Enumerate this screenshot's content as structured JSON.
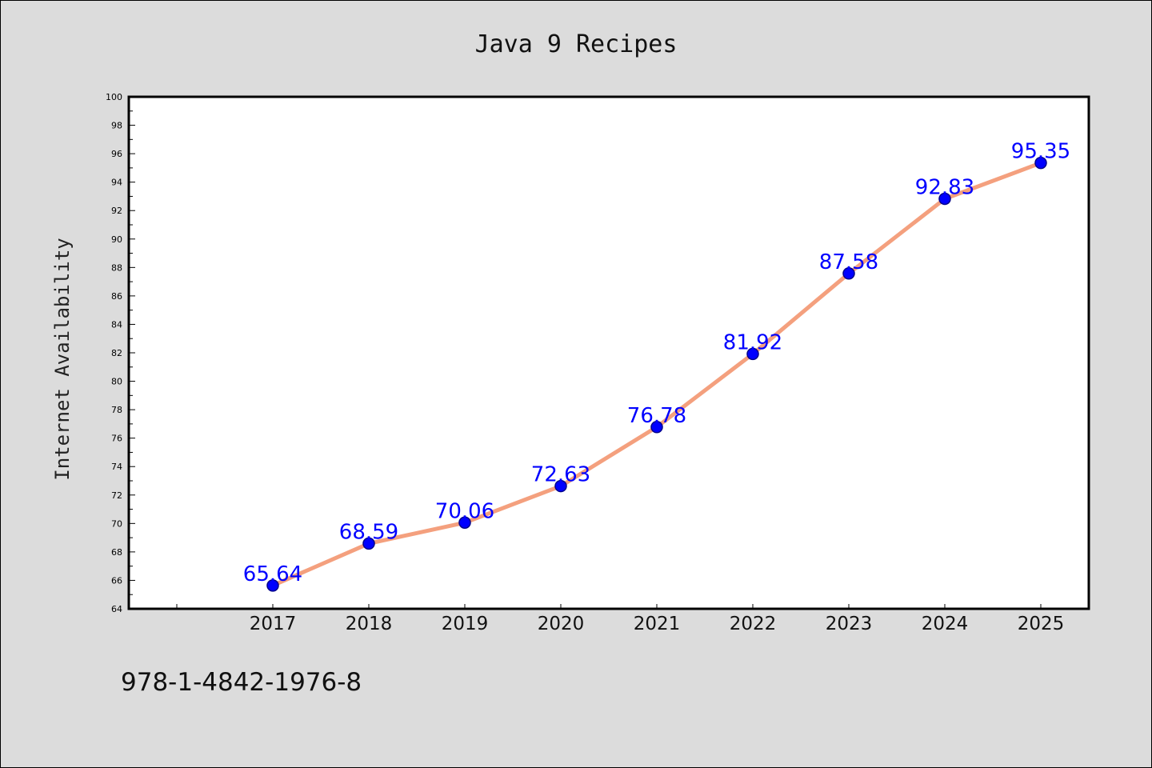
{
  "chart_data": {
    "type": "line",
    "title": "Java 9 Recipes",
    "xlabel": "",
    "ylabel": "Internet Availability",
    "categories": [
      "2017",
      "2018",
      "2019",
      "2020",
      "2021",
      "2022",
      "2023",
      "2024",
      "2025"
    ],
    "series": [
      {
        "values": [
          65.64,
          68.59,
          70.06,
          72.63,
          76.78,
          81.92,
          87.58,
          92.83,
          95.35
        ],
        "labels": [
          "65.64",
          "68.59",
          "70.06",
          "72.63",
          "76.78",
          "81.92",
          "87.58",
          "92.83",
          "95.35"
        ]
      }
    ],
    "ylim": [
      64,
      100
    ],
    "yticks": [
      "64",
      "66",
      "68",
      "70",
      "72",
      "74",
      "76",
      "78",
      "80",
      "82",
      "84",
      "86",
      "88",
      "90",
      "92",
      "94",
      "96",
      "98",
      "100"
    ],
    "grid": false,
    "legend": "none",
    "line_color": "#f4a07e",
    "marker_color": "#0000ff",
    "label_color": "#0000ff"
  },
  "footer": {
    "isbn": "978-1-4842-1976-8"
  }
}
